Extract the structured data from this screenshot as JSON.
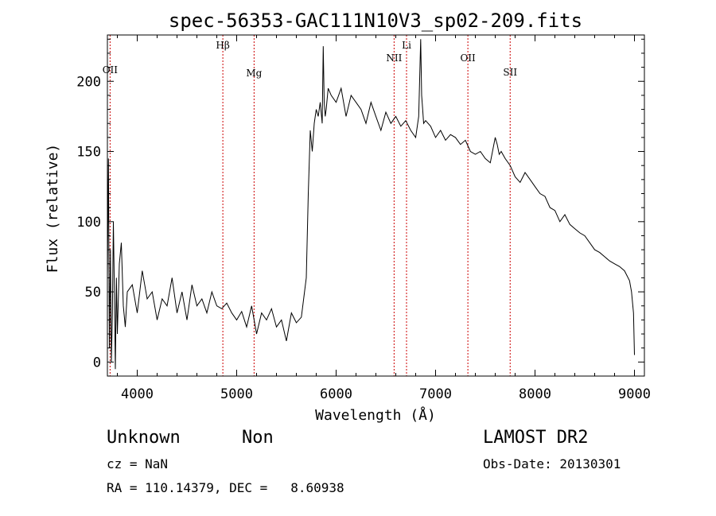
{
  "footer": {
    "class_label": "Unknown",
    "subclass_label": "Non",
    "release": "LAMOST DR2",
    "redshift": "cz = NaN",
    "obs_date": "Obs-Date: 20130301",
    "coords": "RA = 110.14379, DEC =   8.60938"
  },
  "chart_data": {
    "type": "line",
    "title": "spec-56353-GAC111N10V3_sp02-209.fits",
    "xlabel": "Wavelength (Å)",
    "ylabel": "Flux (relative)",
    "xlim": [
      3700,
      9100
    ],
    "ylim": [
      -10,
      233
    ],
    "xticks": [
      4000,
      5000,
      6000,
      7000,
      8000,
      9000
    ],
    "yticks": [
      0,
      50,
      100,
      150,
      200
    ],
    "grid": false,
    "line_color": "#000000",
    "marker_color": "#cc0000",
    "line_markers": [
      {
        "label": "OII",
        "wavelength": 3727
      },
      {
        "label": "Hβ",
        "wavelength": 4861
      },
      {
        "label": "Mg",
        "wavelength": 5175
      },
      {
        "label": "NII",
        "wavelength": 6583
      },
      {
        "label": "Li",
        "wavelength": 6708
      },
      {
        "label": "OII",
        "wavelength": 7325
      },
      {
        "label": "SII",
        "wavelength": 7750
      }
    ],
    "series": [
      {
        "x": [
          3700,
          3710,
          3720,
          3730,
          3740,
          3750,
          3760,
          3770,
          3780,
          3790,
          3800,
          3820,
          3840,
          3860,
          3880,
          3900,
          3950,
          4000,
          4050,
          4100,
          4150,
          4200,
          4250,
          4300,
          4350,
          4400,
          4450,
          4500,
          4550,
          4600,
          4650,
          4700,
          4750,
          4800,
          4850,
          4900,
          4950,
          5000,
          5050,
          5100,
          5150,
          5200,
          5250,
          5300,
          5350,
          5400,
          5450,
          5500,
          5550,
          5600,
          5650,
          5700,
          5720,
          5740,
          5760,
          5780,
          5800,
          5820,
          5840,
          5860,
          5870,
          5880,
          5890,
          5900,
          5920,
          5950,
          6000,
          6050,
          6100,
          6150,
          6200,
          6250,
          6300,
          6350,
          6400,
          6450,
          6500,
          6550,
          6600,
          6650,
          6700,
          6750,
          6800,
          6830,
          6850,
          6860,
          6870,
          6880,
          6900,
          6950,
          7000,
          7050,
          7100,
          7150,
          7200,
          7250,
          7300,
          7350,
          7400,
          7450,
          7500,
          7550,
          7600,
          7620,
          7640,
          7660,
          7700,
          7750,
          7800,
          7850,
          7900,
          7950,
          8000,
          8050,
          8100,
          8150,
          8200,
          8250,
          8300,
          8350,
          8400,
          8450,
          8500,
          8550,
          8600,
          8650,
          8700,
          8750,
          8800,
          8850,
          8900,
          8950,
          8970,
          8990,
          9000
        ],
        "y": [
          60,
          145,
          10,
          80,
          0,
          35,
          100,
          50,
          -5,
          60,
          20,
          70,
          85,
          40,
          25,
          50,
          55,
          35,
          65,
          45,
          50,
          30,
          45,
          40,
          60,
          35,
          50,
          30,
          55,
          40,
          45,
          35,
          50,
          40,
          38,
          42,
          35,
          30,
          36,
          25,
          40,
          20,
          35,
          30,
          38,
          25,
          30,
          15,
          35,
          28,
          32,
          60,
          120,
          165,
          150,
          170,
          180,
          175,
          185,
          170,
          225,
          185,
          175,
          180,
          195,
          190,
          185,
          195,
          175,
          190,
          185,
          180,
          170,
          185,
          175,
          165,
          178,
          170,
          175,
          168,
          172,
          165,
          160,
          175,
          230,
          190,
          180,
          170,
          172,
          168,
          160,
          165,
          158,
          162,
          160,
          155,
          158,
          150,
          148,
          150,
          145,
          142,
          160,
          155,
          148,
          150,
          145,
          140,
          132,
          128,
          135,
          130,
          125,
          120,
          118,
          110,
          108,
          100,
          105,
          98,
          95,
          92,
          90,
          85,
          80,
          78,
          75,
          72,
          70,
          68,
          65,
          58,
          50,
          35,
          5
        ]
      }
    ]
  }
}
